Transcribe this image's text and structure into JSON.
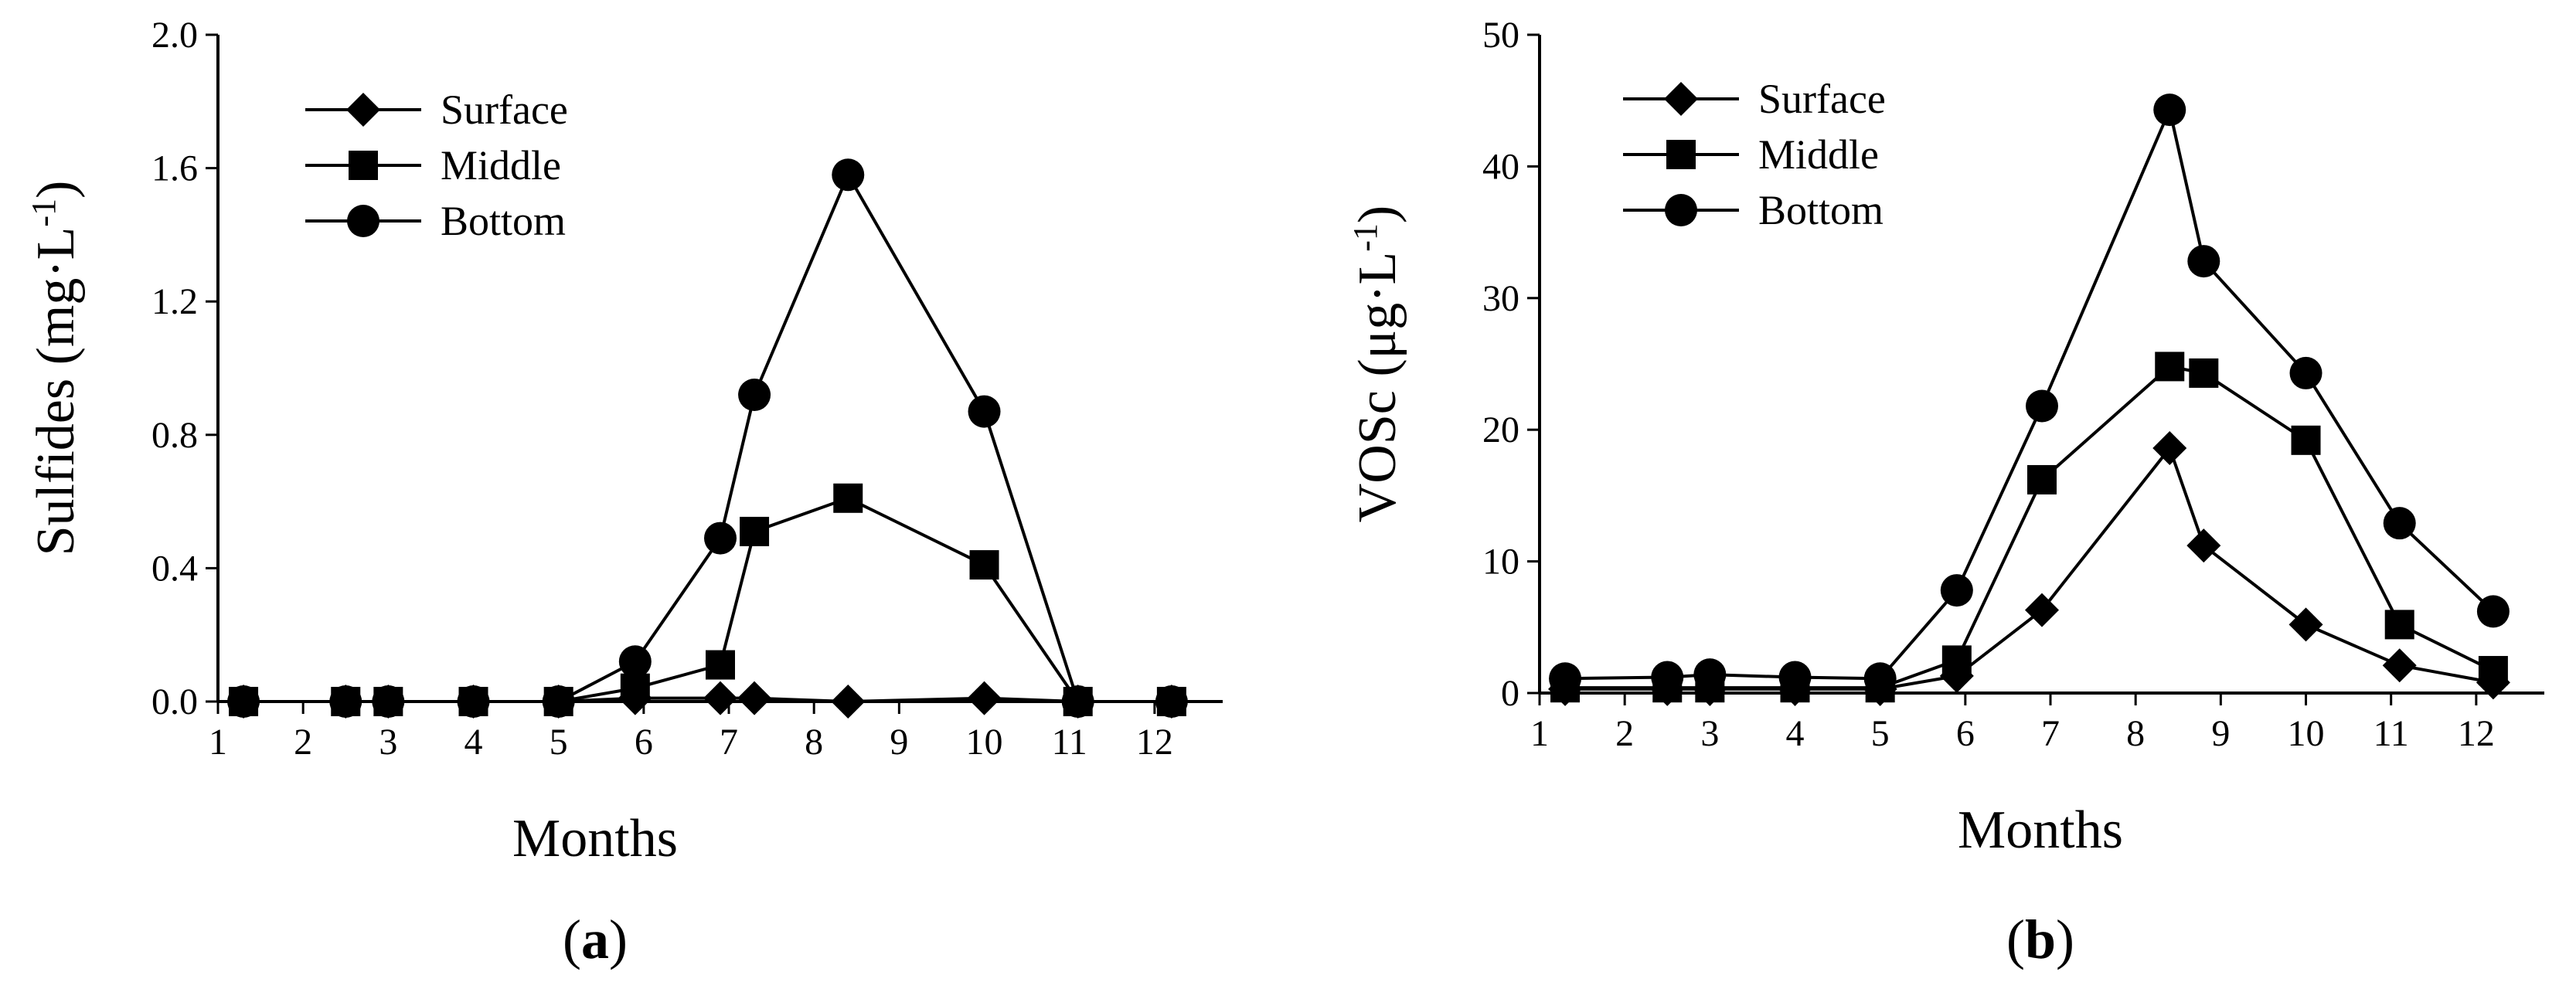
{
  "chart_data": [
    {
      "type": "line",
      "panel": "a",
      "xlabel": "Months",
      "ylabel": "Sulfides (mg·L",
      "ylabel_sup": "-1",
      "ylabel_close": ")",
      "xlim": [
        1,
        12.8
      ],
      "ylim": [
        0,
        2.0
      ],
      "xticks": [
        "1",
        "2",
        "3",
        "4",
        "5",
        "6",
        "7",
        "8",
        "9",
        "10",
        "11",
        "12"
      ],
      "yticks": [
        "0.0",
        "0.4",
        "0.8",
        "1.2",
        "1.6",
        "2.0"
      ],
      "legend_position": "top-left",
      "grid": false,
      "series": [
        {
          "name": "Surface",
          "marker": "diamond",
          "x": [
            1.3,
            2.5,
            3.0,
            4.0,
            5.0,
            5.9,
            6.9,
            7.3,
            8.4,
            10.0,
            11.1,
            12.2
          ],
          "y": [
            0.0,
            0.0,
            0.0,
            0.0,
            0.0,
            0.01,
            0.01,
            0.01,
            0.0,
            0.01,
            0.0,
            0.0
          ]
        },
        {
          "name": "Middle",
          "marker": "square",
          "x": [
            1.3,
            2.5,
            3.0,
            4.0,
            5.0,
            5.9,
            6.9,
            7.3,
            8.4,
            10.0,
            11.1,
            12.2
          ],
          "y": [
            0.0,
            0.0,
            0.0,
            0.0,
            0.0,
            0.04,
            0.11,
            0.51,
            0.61,
            0.41,
            0.0,
            0.0
          ]
        },
        {
          "name": "Bottom",
          "marker": "circle",
          "x": [
            1.3,
            2.5,
            3.0,
            4.0,
            5.0,
            5.9,
            6.9,
            7.3,
            8.4,
            10.0,
            11.1,
            12.2
          ],
          "y": [
            0.0,
            0.0,
            0.0,
            0.0,
            0.0,
            0.12,
            0.49,
            0.92,
            1.58,
            0.87,
            0.0,
            0.0
          ]
        }
      ]
    },
    {
      "type": "line",
      "panel": "b",
      "xlabel": "Months",
      "ylabel": "VOSc (μg·L",
      "ylabel_sup": "-1",
      "ylabel_close": ")",
      "xlim": [
        1,
        12.8
      ],
      "ylim": [
        0,
        50
      ],
      "xticks": [
        "1",
        "2",
        "3",
        "4",
        "5",
        "6",
        "7",
        "8",
        "9",
        "10",
        "11",
        "12"
      ],
      "yticks": [
        "0",
        "10",
        "20",
        "30",
        "40",
        "50"
      ],
      "legend_position": "top-left",
      "grid": false,
      "series": [
        {
          "name": "Surface",
          "marker": "diamond",
          "x": [
            1.3,
            2.5,
            3.0,
            4.0,
            5.0,
            5.9,
            6.9,
            8.4,
            8.8,
            10.0,
            11.1,
            12.2
          ],
          "y": [
            0.3,
            0.3,
            0.3,
            0.3,
            0.3,
            1.3,
            6.3,
            18.6,
            11.2,
            5.2,
            2.1,
            0.8
          ]
        },
        {
          "name": "Middle",
          "marker": "square",
          "x": [
            1.3,
            2.5,
            3.0,
            4.0,
            5.0,
            5.9,
            6.9,
            8.4,
            8.8,
            10.0,
            11.1,
            12.2
          ],
          "y": [
            0.4,
            0.4,
            0.4,
            0.4,
            0.4,
            2.5,
            16.2,
            24.8,
            24.3,
            19.2,
            5.2,
            1.7
          ]
        },
        {
          "name": "Bottom",
          "marker": "circle",
          "x": [
            1.3,
            2.5,
            3.0,
            4.0,
            5.0,
            5.9,
            6.9,
            8.4,
            8.8,
            10.0,
            11.1,
            12.2
          ],
          "y": [
            1.1,
            1.2,
            1.4,
            1.2,
            1.1,
            7.8,
            21.8,
            44.3,
            32.8,
            24.3,
            12.9,
            6.2
          ]
        }
      ]
    }
  ]
}
